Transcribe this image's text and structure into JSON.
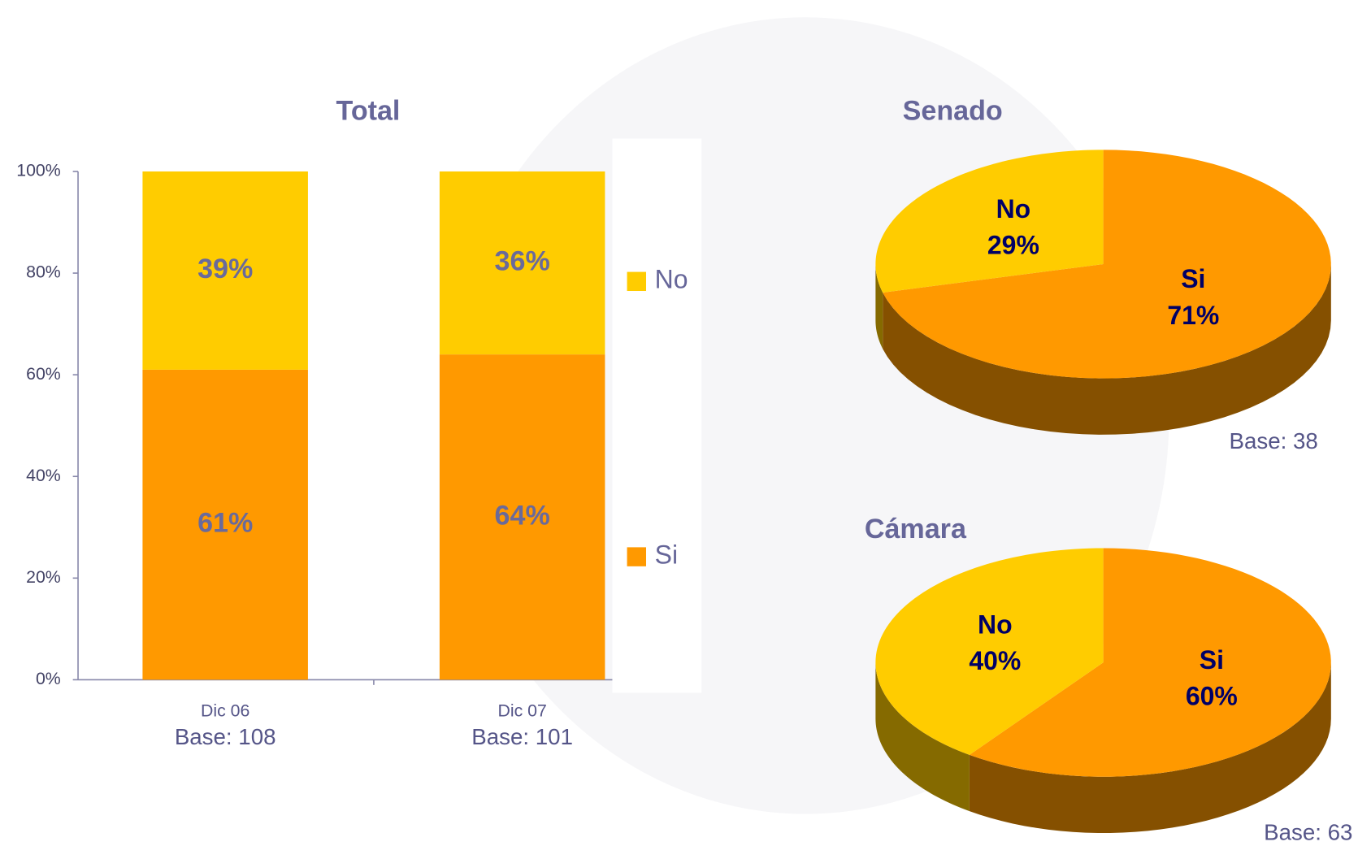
{
  "chart_data": [
    {
      "type": "bar",
      "stacked": true,
      "title": "Total",
      "categories": [
        "Dic 06",
        "Dic 07"
      ],
      "base_labels": [
        "Base: 108",
        "Base: 101"
      ],
      "series": [
        {
          "name": "Si",
          "color": "#ff9900",
          "values": [
            61,
            64
          ],
          "value_labels": [
            "61%",
            "64%"
          ]
        },
        {
          "name": "No",
          "color": "#ffcc00",
          "values": [
            39,
            36
          ],
          "value_labels": [
            "39%",
            "36%"
          ]
        }
      ],
      "ylim": [
        0,
        100
      ],
      "yticks": [
        {
          "value": 0,
          "label": "0%"
        },
        {
          "value": 20,
          "label": "20%"
        },
        {
          "value": 40,
          "label": "40%"
        },
        {
          "value": 60,
          "label": "60%"
        },
        {
          "value": 80,
          "label": "80%"
        },
        {
          "value": 100,
          "label": "100%"
        }
      ],
      "legend": "right"
    },
    {
      "type": "pie",
      "title": "Senado",
      "categories": [
        "Si",
        "No"
      ],
      "values": [
        71,
        29
      ],
      "value_labels": [
        "71%",
        "29%"
      ],
      "colors": [
        "#ff9900",
        "#ffcc00"
      ],
      "base": "Base: 38"
    },
    {
      "type": "pie",
      "title": "Cámara",
      "categories": [
        "Si",
        "No"
      ],
      "values": [
        60,
        40
      ],
      "value_labels": [
        "60%",
        "40%"
      ],
      "colors": [
        "#ff9900",
        "#ffcc00"
      ],
      "base": "Base: 63"
    }
  ]
}
